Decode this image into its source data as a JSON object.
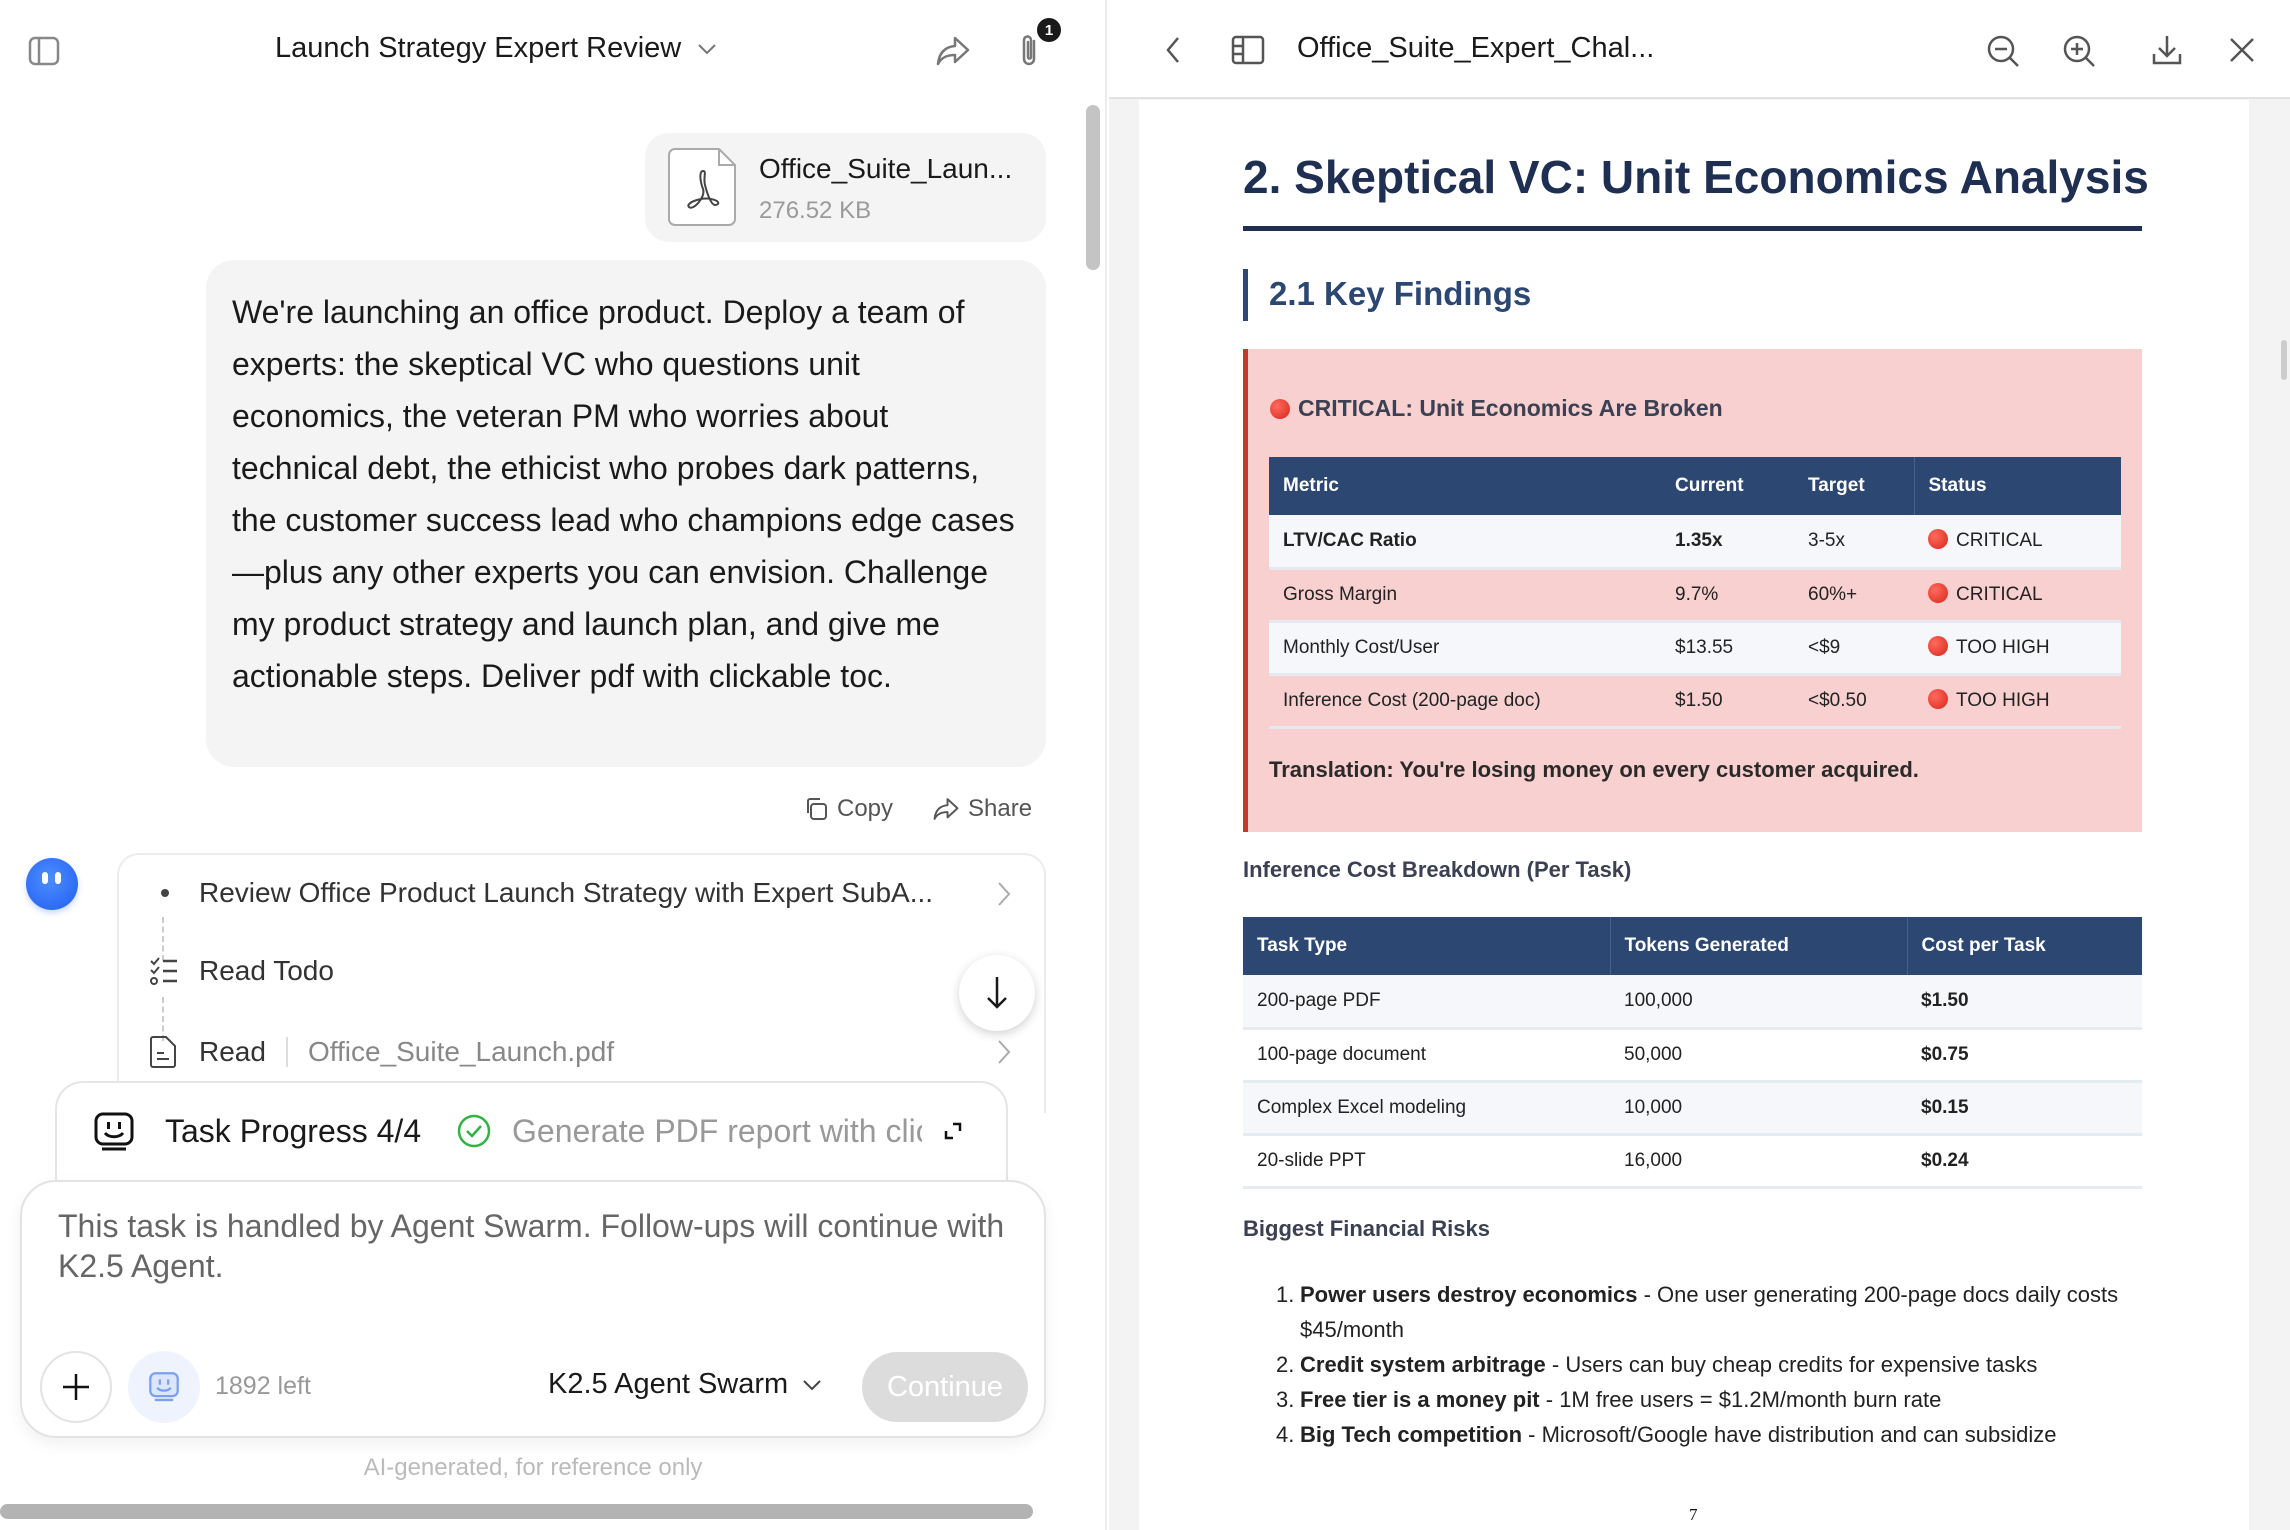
{
  "left": {
    "header": {
      "title": "Launch Strategy Expert Review",
      "attachment_count": "1"
    },
    "file": {
      "name": "Office_Suite_Laun...",
      "size": "276.52 KB"
    },
    "message": "We're launching an office product. Deploy a team of experts: the skeptical VC who questions unit economics, the veteran PM who worries about technical debt, the ethicist who probes dark patterns, the customer success lead who champions edge cases—plus any other experts you can envision. Challenge my product strategy and launch plan, and give me actionable steps. Deliver pdf with clickable toc.",
    "actions": {
      "copy": "Copy",
      "share": "Share"
    },
    "steps": [
      {
        "label": "Review Office Product Launch Strategy with Expert SubA..."
      },
      {
        "label": "Read Todo"
      },
      {
        "label": "Read",
        "detail": "Office_Suite_Launch.pdf"
      }
    ],
    "progress": {
      "label": "Task Progress 4/4",
      "current": "Generate PDF report with clic"
    },
    "input": {
      "text": "This task is handled by Agent Swarm. Follow-ups will continue with K2.5 Agent.",
      "remaining": "1892 left",
      "model": "K2.5 Agent Swarm",
      "continue": "Continue"
    },
    "footer": "AI-generated, for reference only"
  },
  "right": {
    "header": {
      "title": "Office_Suite_Expert_Chal..."
    },
    "doc": {
      "h1": "2. Skeptical VC: Unit Economics Analysis",
      "h2": "2.1 Key Findings",
      "critical_title": "CRITICAL: Unit Economics Are Broken",
      "metrics_headers": [
        "Metric",
        "Current",
        "Target",
        "Status"
      ],
      "metrics": [
        [
          "LTV/CAC Ratio",
          "1.35x",
          "3-5x",
          "CRITICAL"
        ],
        [
          "Gross Margin",
          "9.7%",
          "60%+",
          "CRITICAL"
        ],
        [
          "Monthly Cost/User",
          "$13.55",
          "<$9",
          "TOO HIGH"
        ],
        [
          "Inference Cost (200-page doc)",
          "$1.50",
          "<$0.50",
          "TOO HIGH"
        ]
      ],
      "translation": "Translation: You're losing money on every customer acquired.",
      "breakdown_title": "Inference Cost Breakdown (Per Task)",
      "breakdown_headers": [
        "Task Type",
        "Tokens Generated",
        "Cost per Task"
      ],
      "breakdown": [
        [
          "200-page PDF",
          "100,000",
          "$1.50"
        ],
        [
          "100-page document",
          "50,000",
          "$0.75"
        ],
        [
          "Complex Excel modeling",
          "10,000",
          "$0.15"
        ],
        [
          "20-slide PPT",
          "16,000",
          "$0.24"
        ]
      ],
      "risks_title": "Biggest Financial Risks",
      "risks": [
        {
          "n": "1.",
          "bold": "Power users destroy economics",
          "text": " - One user generating 200-page docs daily costs $45/month"
        },
        {
          "n": "2.",
          "bold": "Credit system arbitrage",
          "text": " - Users can buy cheap credits for expensive tasks"
        },
        {
          "n": "3.",
          "bold": "Free tier is a money pit",
          "text": " - 1M free users = $1.2M/month burn rate"
        },
        {
          "n": "4.",
          "bold": "Big Tech competition",
          "text": " - Microsoft/Google have distribution and can subsidize"
        }
      ],
      "page_number": "7"
    }
  },
  "colors": {
    "accent_navy": "#1e2f52",
    "table_header": "#2c4872",
    "critical_bg": "#f8d0d0",
    "critical_border": "#c0392b",
    "success": "#2fb344"
  }
}
